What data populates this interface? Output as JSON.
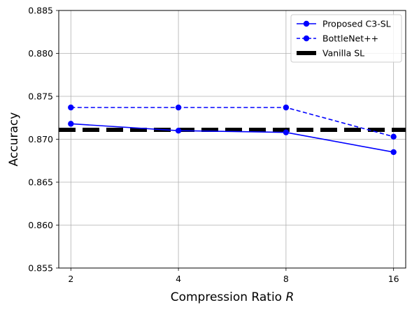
{
  "chart_data": {
    "type": "line",
    "xlabel": "Compression Ratio",
    "xlabel_var": "R",
    "ylabel": "Accuracy",
    "x": [
      2,
      4,
      8,
      16
    ],
    "x_tick_labels": [
      "2",
      "4",
      "8",
      "16"
    ],
    "x_scale": "log2",
    "y_ticks": [
      "0.855",
      "0.860",
      "0.865",
      "0.870",
      "0.875",
      "0.880",
      "0.885"
    ],
    "ylim": [
      0.855,
      0.885
    ],
    "grid": true,
    "legend_position": "upper right",
    "series": [
      {
        "name": "Proposed C3-SL",
        "values": [
          0.8718,
          0.871,
          0.8708,
          0.8685
        ],
        "color": "#0000ff",
        "style": "solid",
        "marker": "circle"
      },
      {
        "name": "BottleNet++",
        "values": [
          0.8737,
          0.8737,
          0.8737,
          0.8703
        ],
        "color": "#0000ff",
        "style": "dashed",
        "marker": "circle"
      }
    ],
    "reference_lines": [
      {
        "name": "Vanilla SL",
        "value": 0.8711,
        "color": "#000000",
        "style": "dashed-thick"
      }
    ]
  }
}
